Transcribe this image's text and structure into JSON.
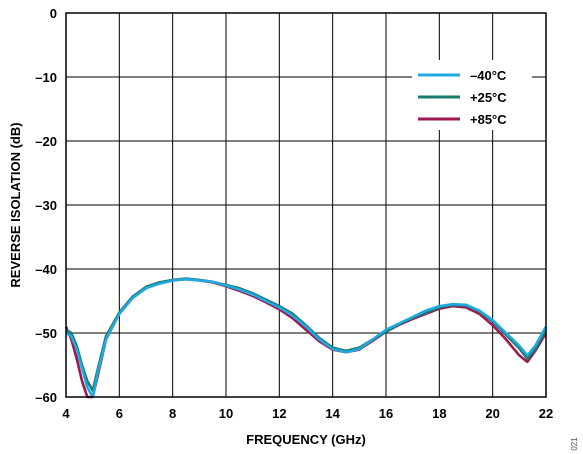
{
  "figure_id": "021",
  "chart_data": {
    "type": "line",
    "xlabel": "FREQUENCY (GHz)",
    "ylabel": "REVERSE ISOLATION (dB)",
    "xlim": [
      4,
      22
    ],
    "ylim": [
      -60,
      0
    ],
    "x_ticks": [
      4,
      6,
      8,
      10,
      12,
      14,
      16,
      18,
      20,
      22
    ],
    "y_ticks": [
      0,
      -10,
      -20,
      -30,
      -40,
      -50,
      -60
    ],
    "x_tick_labels": [
      "4",
      "6",
      "8",
      "10",
      "12",
      "14",
      "16",
      "18",
      "20",
      "22"
    ],
    "y_tick_labels": [
      "0",
      "–10",
      "–20",
      "–30",
      "–40",
      "–50",
      "–60"
    ],
    "grid": true,
    "legend_position": "top-right",
    "series": [
      {
        "name": "–40°C",
        "color": "#1fa9e0",
        "x": [
          4.0,
          4.2,
          4.4,
          4.6,
          4.8,
          5.0,
          5.2,
          5.5,
          6.0,
          6.5,
          7.0,
          7.5,
          8.0,
          8.5,
          9.0,
          9.5,
          10.0,
          10.5,
          11.0,
          11.5,
          12.0,
          12.5,
          13.0,
          13.5,
          14.0,
          14.5,
          15.0,
          15.5,
          16.0,
          16.5,
          17.0,
          17.5,
          18.0,
          18.5,
          19.0,
          19.5,
          20.0,
          20.5,
          21.0,
          21.3,
          21.6,
          22.0
        ],
        "y": [
          -50.0,
          -50.5,
          -52.5,
          -55.5,
          -58.5,
          -60.0,
          -56.0,
          -51.0,
          -47.0,
          -44.5,
          -43.0,
          -42.3,
          -41.8,
          -41.6,
          -41.8,
          -42.0,
          -42.6,
          -43.2,
          -44.0,
          -45.0,
          -46.0,
          -47.3,
          -49.0,
          -51.0,
          -52.5,
          -53.0,
          -52.5,
          -51.0,
          -49.5,
          -48.5,
          -47.5,
          -46.5,
          -45.8,
          -45.5,
          -45.6,
          -46.5,
          -48.0,
          -50.0,
          -52.0,
          -53.5,
          -52.0,
          -49.0
        ]
      },
      {
        "name": "+25°C",
        "color": "#1a7a6e",
        "x": [
          4.0,
          4.2,
          4.4,
          4.6,
          4.8,
          5.0,
          5.2,
          5.5,
          6.0,
          6.5,
          7.0,
          7.5,
          8.0,
          8.5,
          9.0,
          9.5,
          10.0,
          10.5,
          11.0,
          11.5,
          12.0,
          12.5,
          13.0,
          13.5,
          14.0,
          14.5,
          15.0,
          15.5,
          16.0,
          16.5,
          17.0,
          17.5,
          18.0,
          18.5,
          19.0,
          19.5,
          20.0,
          20.5,
          21.0,
          21.3,
          21.6,
          22.0
        ],
        "y": [
          -49.5,
          -50.0,
          -52.0,
          -55.0,
          -57.5,
          -59.0,
          -55.5,
          -50.5,
          -46.8,
          -44.3,
          -42.8,
          -42.1,
          -41.7,
          -41.5,
          -41.7,
          -42.0,
          -42.5,
          -43.0,
          -43.8,
          -44.8,
          -45.8,
          -47.0,
          -48.8,
          -50.8,
          -52.3,
          -52.8,
          -52.3,
          -51.0,
          -49.8,
          -48.6,
          -47.6,
          -46.8,
          -46.0,
          -45.6,
          -45.7,
          -46.6,
          -48.2,
          -50.3,
          -52.4,
          -54.0,
          -52.5,
          -49.5
        ]
      },
      {
        "name": "+85°C",
        "color": "#9b1b4e",
        "x": [
          4.0,
          4.2,
          4.4,
          4.6,
          4.8,
          5.0,
          5.2,
          5.5,
          6.0,
          6.5,
          7.0,
          7.5,
          8.0,
          8.5,
          9.0,
          9.5,
          10.0,
          10.5,
          11.0,
          11.5,
          12.0,
          12.5,
          13.0,
          13.5,
          14.0,
          14.5,
          15.0,
          15.5,
          16.0,
          16.5,
          17.0,
          17.5,
          18.0,
          18.5,
          19.0,
          19.5,
          20.0,
          20.5,
          21.0,
          21.3,
          21.6,
          22.0
        ],
        "y": [
          -49.0,
          -51.0,
          -54.0,
          -57.5,
          -60.0,
          -60.0,
          -56.5,
          -51.0,
          -47.0,
          -44.5,
          -43.0,
          -42.2,
          -41.8,
          -41.6,
          -41.8,
          -42.1,
          -42.7,
          -43.4,
          -44.2,
          -45.2,
          -46.3,
          -47.7,
          -49.5,
          -51.3,
          -52.6,
          -53.0,
          -52.6,
          -51.2,
          -49.8,
          -48.7,
          -47.8,
          -47.0,
          -46.2,
          -45.8,
          -46.0,
          -47.0,
          -48.8,
          -51.0,
          -53.5,
          -54.5,
          -52.8,
          -50.0
        ]
      }
    ]
  }
}
